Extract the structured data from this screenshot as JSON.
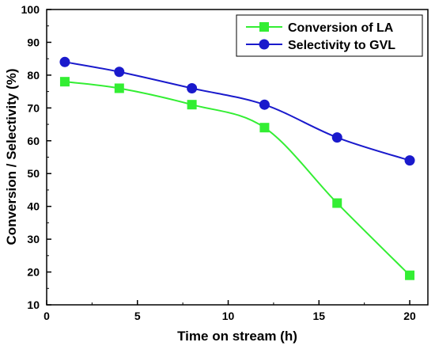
{
  "chart_data": {
    "type": "line",
    "xlabel": "Time on stream (h)",
    "ylabel": "Conversion / Selectivity (%)",
    "xlim": [
      0,
      21
    ],
    "ylim": [
      10,
      100
    ],
    "xticks": [
      0,
      5,
      10,
      15,
      20
    ],
    "yticks": [
      10,
      20,
      30,
      40,
      50,
      60,
      70,
      80,
      90,
      100
    ],
    "grid": false,
    "legend_position": "top-right",
    "series": [
      {
        "name": "Conversion of LA",
        "marker": "square",
        "color": "#33ee33",
        "x": [
          1,
          4,
          8,
          12,
          16,
          20
        ],
        "y": [
          78,
          76,
          71,
          64,
          41,
          19
        ]
      },
      {
        "name": "Selectivity to GVL",
        "marker": "circle",
        "color": "#1a1acc",
        "x": [
          1,
          4,
          8,
          12,
          16,
          20
        ],
        "y": [
          84,
          81,
          76,
          71,
          61,
          54
        ]
      }
    ]
  }
}
